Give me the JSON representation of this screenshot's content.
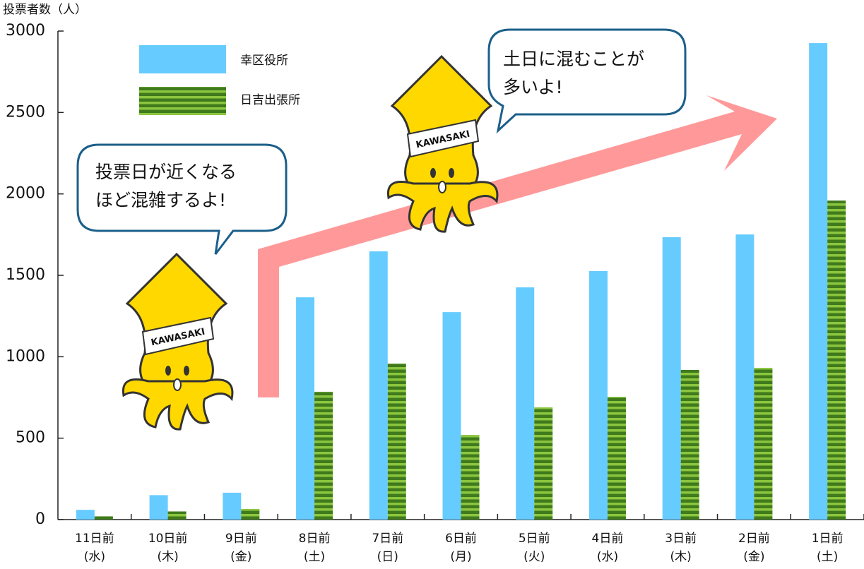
{
  "chart_data": {
    "type": "bar",
    "y_label": "投票者数（人）",
    "categories": [
      "11日前",
      "10日前",
      "9日前",
      "8日前",
      "7日前",
      "6日前",
      "5日前",
      "4日前",
      "3日前",
      "2日前",
      "1日前"
    ],
    "weekdays": [
      "(水)",
      "(木)",
      "(金)",
      "(土)",
      "(日)",
      "(月)",
      "(火)",
      "(水)",
      "(木)",
      "(金)",
      "(土)"
    ],
    "series": [
      {
        "name": "幸区役所",
        "color": "#66ccff",
        "values": [
          60,
          150,
          165,
          1365,
          1647,
          1274,
          1426,
          1526,
          1734,
          1751,
          2926
        ]
      },
      {
        "name": "日吉出張所",
        "color": "#3f7a1c",
        "values": [
          20,
          50,
          65,
          785,
          958,
          520,
          689,
          754,
          919,
          932,
          1959
        ]
      }
    ],
    "ylim": [
      0,
      3000
    ],
    "yticks": [
      0,
      500,
      1000,
      1500,
      2000,
      2500,
      3000
    ],
    "annotations": [
      [
        "投票日が近くなる",
        "ほど混雑するよ!"
      ],
      [
        "土日に混むことが",
        "多いよ!"
      ]
    ]
  }
}
